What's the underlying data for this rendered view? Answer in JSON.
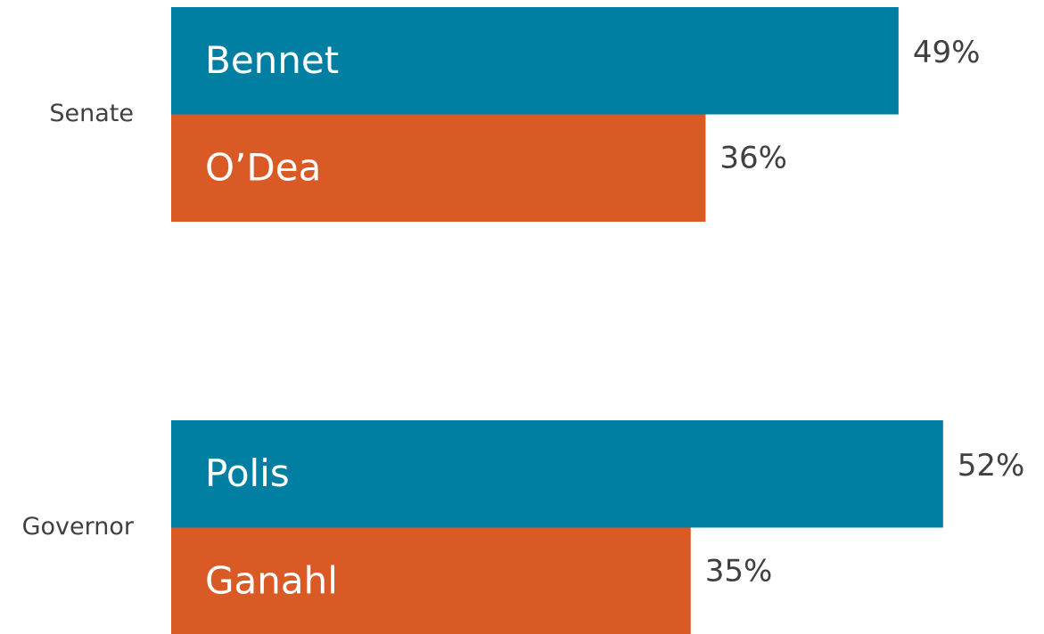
{
  "chart_data": {
    "type": "bar",
    "orientation": "horizontal",
    "categories": [
      "Senate",
      "Governor"
    ],
    "series": [
      {
        "color": "#007fa3",
        "names": [
          "Bennet",
          "Polis"
        ],
        "values": [
          49,
          52
        ],
        "value_labels": [
          "49%",
          "52%"
        ]
      },
      {
        "color": "#d95a24",
        "names": [
          "O’Dea",
          "Ganahl"
        ],
        "values": [
          36,
          35
        ],
        "value_labels": [
          "36%",
          "35%"
        ]
      }
    ]
  }
}
